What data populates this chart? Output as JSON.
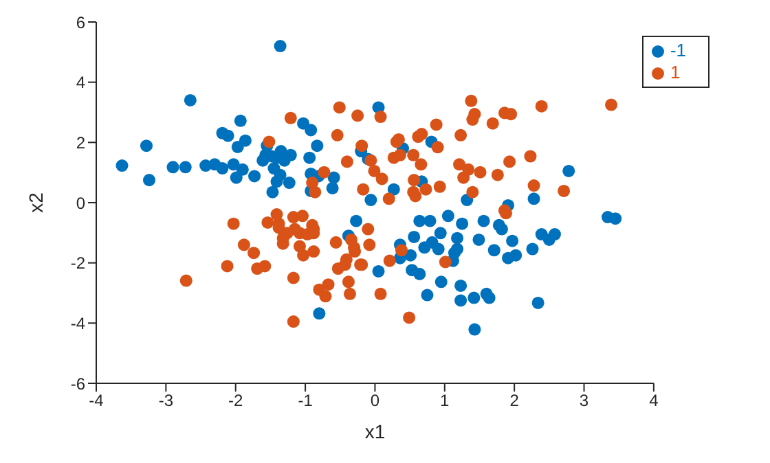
{
  "chart_data": {
    "type": "scatter",
    "xlabel": "x1",
    "ylabel": "x2",
    "xlim": [
      -4,
      4
    ],
    "ylim": [
      -6,
      6
    ],
    "xticks": [
      -4,
      -3,
      -2,
      -1,
      0,
      1,
      2,
      3,
      4
    ],
    "yticks": [
      -6,
      -4,
      -2,
      0,
      2,
      4,
      6
    ],
    "grid": false,
    "legend": "top right",
    "marker": "circle",
    "series": [
      {
        "name": "-1",
        "color": "#0072bd",
        "x": [
          -1.36,
          -2.65,
          -1.93,
          -2.19,
          -2.11,
          -1.86,
          -3.28,
          -1.97,
          -3.63,
          -3.24,
          -2.9,
          -2.72,
          -2.43,
          -2.3,
          -2.19,
          -2.03,
          -1.9,
          -1.73,
          -1.99,
          -1.57,
          -1.55,
          -1.61,
          -1.48,
          -1.35,
          -1.41,
          -1.3,
          -1.21,
          -1.45,
          -1.36,
          -1.41,
          -1.23,
          -1.47,
          -1.03,
          -0.92,
          -0.83,
          -0.94,
          -0.92,
          -0.81,
          -0.59,
          -0.61,
          -0.06,
          -0.2,
          -0.1,
          0.05,
          0.4,
          0.81,
          2.78,
          0.27,
          0.67,
          1.32,
          2.28,
          1.91,
          0.64,
          0.79,
          1.05,
          1.25,
          1.56,
          1.78,
          1.82,
          3.34,
          3.45,
          2.39,
          2.5,
          2.58,
          2.26,
          1.97,
          2.02,
          1.91,
          1.71,
          1.49,
          1.18,
          0.94,
          0.82,
          0.71,
          0.91,
          0.56,
          0.36,
          0.51,
          0.36,
          0.53,
          0.64,
          1.18,
          1.14,
          1.12,
          0.05,
          0.95,
          1.23,
          0.75,
          1.23,
          1.42,
          1.6,
          1.64,
          2.34,
          1.43,
          -0.92,
          -0.27,
          -0.38,
          -0.8
        ],
        "values": [
          5.2,
          3.4,
          2.72,
          2.31,
          2.22,
          2.06,
          1.89,
          1.85,
          1.23,
          0.75,
          1.18,
          1.18,
          1.23,
          1.27,
          1.14,
          1.27,
          1.1,
          0.88,
          0.83,
          1.58,
          1.89,
          1.4,
          1.54,
          1.71,
          1.49,
          1.4,
          1.58,
          1.14,
          0.92,
          0.7,
          0.66,
          0.35,
          2.63,
          2.41,
          1.89,
          1.49,
          0.96,
          0.88,
          0.83,
          0.48,
          0.09,
          1.71,
          1.45,
          3.16,
          1.8,
          2.02,
          1.05,
          0.44,
          0.7,
          0.09,
          0.13,
          -0.09,
          -0.61,
          -0.61,
          -0.44,
          -0.7,
          -0.61,
          -0.75,
          -0.88,
          -0.48,
          -0.53,
          -1.05,
          -1.23,
          -1.05,
          -1.54,
          -1.27,
          -1.75,
          -1.84,
          -1.58,
          -1.23,
          -1.18,
          -1.01,
          -1.32,
          -1.49,
          -1.54,
          -1.14,
          -1.4,
          -1.75,
          -1.84,
          -2.24,
          -2.37,
          -1.54,
          -1.67,
          -1.93,
          -2.28,
          -2.63,
          -2.76,
          -3.07,
          -3.25,
          -3.16,
          -3.03,
          -3.16,
          -3.33,
          -4.21,
          0.39,
          -0.61,
          -1.1,
          -3.68
        ]
      },
      {
        "name": "1",
        "color": "#d95319",
        "x": [
          -1.21,
          -1.52,
          -0.51,
          -0.25,
          -0.54,
          -0.19,
          -0.4,
          -0.06,
          -0.73,
          -0.9,
          -0.86,
          -0.17,
          -0.01,
          1.38,
          1.43,
          1.4,
          1.86,
          1.95,
          2.39,
          3.39,
          1.69,
          0.88,
          1.23,
          0.62,
          0.67,
          0.9,
          0.34,
          0.31,
          0.08,
          0.36,
          0.27,
          0.55,
          0.66,
          1.21,
          1.34,
          1.27,
          1.51,
          1.93,
          2.23,
          1.76,
          0.1,
          0.56,
          0.93,
          0.73,
          0.55,
          0.58,
          1.4,
          2.28,
          2.71,
          0.2,
          -0.1,
          -0.08,
          -0.19,
          0.21,
          0.38,
          1.01,
          1.86,
          1.88,
          0.08,
          0.49,
          -2.03,
          -1.88,
          -1.74,
          -2.12,
          -1.69,
          -1.58,
          -2.71,
          -1.54,
          -1.41,
          -1.38,
          -1.38,
          -1.17,
          -1.04,
          -1.15,
          -1.26,
          -1.32,
          -1.32,
          -1.08,
          -0.97,
          -0.9,
          -0.88,
          -0.88,
          -1.08,
          -1.03,
          -0.88,
          -1.17,
          -0.56,
          -0.8,
          -0.71,
          -0.67,
          -1.17,
          -0.53,
          -0.43,
          -0.41,
          -0.38,
          -0.36,
          -0.34,
          -0.3,
          -0.29,
          -0.21
        ],
        "values": [
          2.81,
          2.02,
          3.16,
          2.89,
          2.24,
          1.89,
          1.36,
          1.4,
          1.01,
          0.66,
          0.35,
          0.44,
          1.05,
          3.38,
          2.94,
          2.76,
          2.98,
          2.94,
          3.2,
          3.25,
          2.63,
          2.59,
          2.24,
          2.19,
          2.28,
          1.84,
          2.1,
          2.02,
          2.85,
          1.58,
          1.49,
          1.58,
          1.27,
          1.27,
          1.1,
          0.83,
          1.01,
          1.36,
          1.54,
          0.92,
          0.79,
          0.75,
          0.53,
          0.44,
          0.35,
          0.22,
          0.35,
          0.57,
          0.39,
          0.13,
          -0.88,
          -1.4,
          -2.06,
          -1.93,
          -1.58,
          -1.97,
          -0.26,
          -0.35,
          -3.03,
          -3.82,
          -0.7,
          -1.4,
          -1.67,
          -2.11,
          -2.19,
          -2.11,
          -2.59,
          -0.66,
          -0.39,
          -0.7,
          -0.83,
          -0.48,
          -0.44,
          -0.88,
          -1.01,
          -1.18,
          -1.36,
          -1.01,
          -1.05,
          -0.75,
          -0.88,
          -1.01,
          -1.45,
          -1.75,
          -1.62,
          -2.5,
          -1.32,
          -2.89,
          -3.11,
          -2.72,
          -3.95,
          -2.19,
          -2.06,
          -1.89,
          -2.63,
          -3.03,
          -1.23,
          -1.49,
          -1.62,
          -2.06
        ]
      }
    ]
  }
}
